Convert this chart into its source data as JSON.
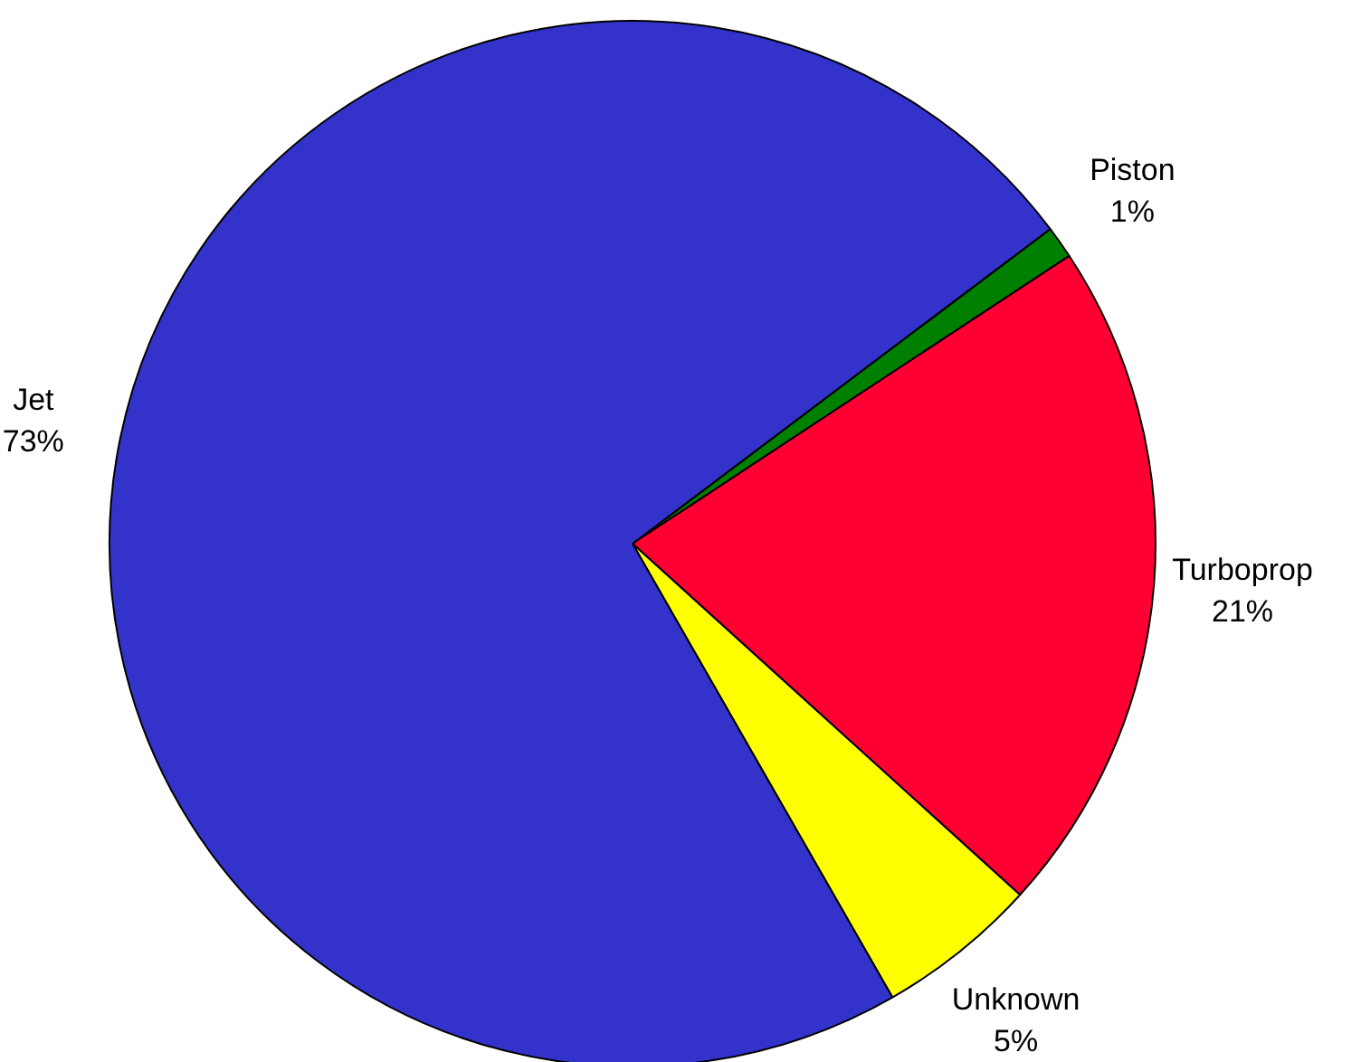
{
  "chart_data": {
    "type": "pie",
    "categories": [
      "Piston",
      "Turboprop",
      "Unknown",
      "Jet"
    ],
    "values": [
      1,
      21,
      5,
      73
    ],
    "value_labels": [
      "1%",
      "21%",
      "5%",
      "73%"
    ],
    "colors": [
      "#008000",
      "#ff0033",
      "#ffff00",
      "#3333cc"
    ]
  }
}
